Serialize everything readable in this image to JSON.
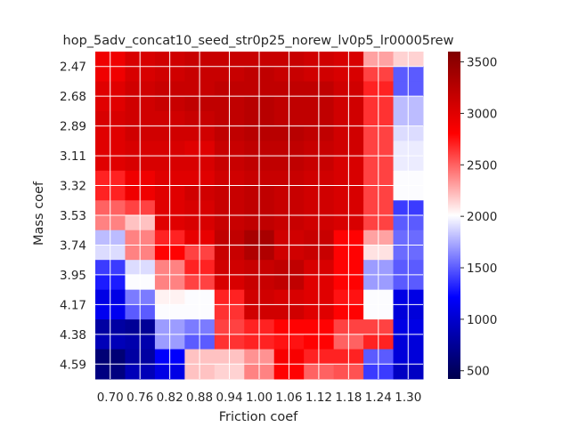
{
  "chart_data": {
    "type": "heatmap",
    "title": "hop_5adv_concat10_seed_str0p25_norew_lv0p5_lr00005rew",
    "xlabel": "Friction coef",
    "ylabel": "Mass coef",
    "x_categories": [
      "0.70",
      "0.76",
      "0.82",
      "0.88",
      "0.94",
      "1.00",
      "1.06",
      "1.12",
      "1.18",
      "1.24",
      "1.30"
    ],
    "y_categories": [
      "2.47",
      "2.47",
      "2.68",
      "2.68",
      "2.89",
      "2.89",
      "3.11",
      "3.11",
      "3.32",
      "3.32",
      "3.53",
      "3.53",
      "3.74",
      "3.74",
      "3.95",
      "3.95",
      "4.17",
      "4.17",
      "4.38",
      "4.38",
      "4.59",
      "4.59"
    ],
    "y_tick_labels": [
      "2.47",
      "2.68",
      "2.89",
      "3.11",
      "3.32",
      "3.53",
      "3.74",
      "3.95",
      "4.17",
      "4.38",
      "4.59"
    ],
    "values": [
      [
        2900,
        3050,
        3100,
        3150,
        3150,
        3150,
        3150,
        3100,
        3050,
        2300,
        2150
      ],
      [
        2900,
        3050,
        3100,
        3150,
        3150,
        3200,
        3150,
        3100,
        3050,
        2600,
        1500
      ],
      [
        3000,
        3100,
        3150,
        3150,
        3200,
        3200,
        3200,
        3200,
        3100,
        2700,
        1500
      ],
      [
        3000,
        3100,
        3150,
        3200,
        3200,
        3250,
        3200,
        3200,
        3100,
        2650,
        1800
      ],
      [
        3050,
        3100,
        3100,
        3150,
        3200,
        3250,
        3200,
        3200,
        3100,
        2650,
        1800
      ],
      [
        3000,
        3100,
        3100,
        3100,
        3200,
        3250,
        3250,
        3200,
        3100,
        2600,
        1900
      ],
      [
        3000,
        3050,
        3050,
        3000,
        3150,
        3200,
        3200,
        3150,
        3100,
        2600,
        1950
      ],
      [
        3000,
        3050,
        3050,
        3050,
        3150,
        3200,
        3200,
        3150,
        3050,
        2600,
        1950
      ],
      [
        2700,
        2900,
        3000,
        3000,
        3100,
        3150,
        3150,
        3100,
        3050,
        2600,
        2000
      ],
      [
        2700,
        2900,
        3000,
        3100,
        3150,
        3200,
        3150,
        3100,
        3050,
        2600,
        2000
      ],
      [
        2500,
        2600,
        3000,
        3050,
        3150,
        3200,
        3150,
        3100,
        3050,
        2600,
        1400
      ],
      [
        2400,
        2200,
        3000,
        3050,
        3150,
        3200,
        3150,
        3100,
        3050,
        2600,
        1500
      ],
      [
        1800,
        2400,
        2700,
        2950,
        3200,
        3350,
        3100,
        3150,
        2800,
        2300,
        1550
      ],
      [
        1900,
        2400,
        2800,
        2600,
        3150,
        3300,
        3100,
        3150,
        2800,
        2100,
        1550
      ],
      [
        1400,
        1900,
        2400,
        2700,
        3100,
        3150,
        3200,
        3050,
        2800,
        1700,
        1500
      ],
      [
        1300,
        2000,
        2400,
        2600,
        3050,
        3150,
        3200,
        3000,
        2800,
        1700,
        1500
      ],
      [
        1100,
        1600,
        2050,
        2000,
        2700,
        3100,
        3050,
        3000,
        2750,
        2000,
        1100
      ],
      [
        1150,
        1500,
        2000,
        2000,
        2650,
        3100,
        3100,
        3000,
        2800,
        2000,
        1050
      ],
      [
        800,
        750,
        1700,
        1600,
        2600,
        2700,
        2800,
        2800,
        2600,
        2600,
        1100
      ],
      [
        900,
        850,
        1700,
        1500,
        2650,
        2700,
        2750,
        2800,
        2500,
        2700,
        1050
      ],
      [
        600,
        800,
        1200,
        2200,
        2200,
        2350,
        2850,
        2700,
        2700,
        1500,
        1050
      ],
      [
        650,
        900,
        1100,
        2200,
        2150,
        2400,
        2800,
        2500,
        2550,
        1400,
        950
      ]
    ],
    "vmin": 420,
    "vmax": 3600,
    "colorbar": {
      "ticks": [
        500,
        1000,
        1500,
        2000,
        2500,
        3000,
        3500
      ],
      "tick_labels": [
        "500",
        "1000",
        "1500",
        "2000",
        "2500",
        "3000",
        "3500"
      ]
    },
    "colormap": "seismic",
    "grid": true,
    "grid_color": "#ffffff",
    "legend": "colorbar-right"
  }
}
